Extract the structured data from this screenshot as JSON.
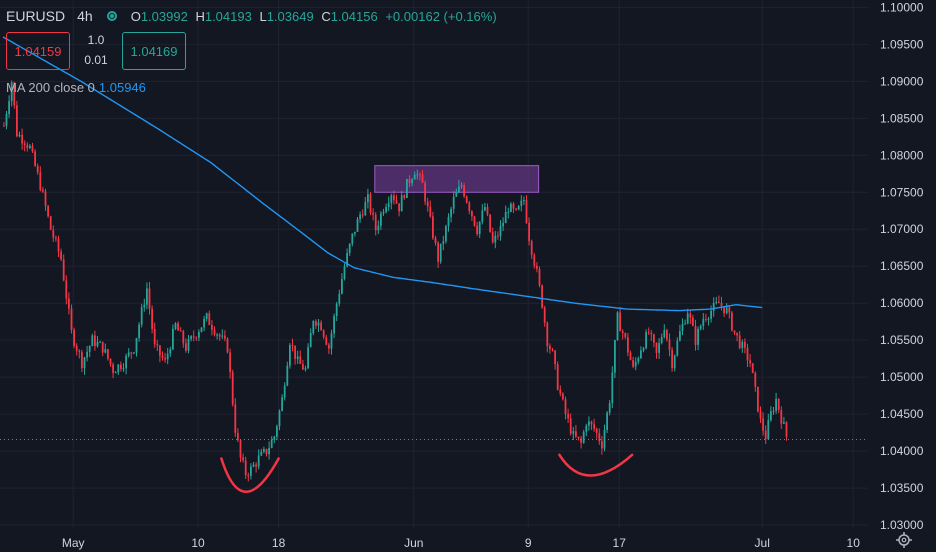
{
  "header": {
    "symbol": "EURUSD",
    "timeframe": "4h",
    "open_label": "O",
    "open": "1.03992",
    "high_label": "H",
    "high": "1.04193",
    "low_label": "L",
    "low": "1.03649",
    "close_label": "C",
    "close": "1.04156",
    "change": "+0.00162 (+0.16%)"
  },
  "trade_panel": {
    "sell_price": "1.04159",
    "buy_price": "1.04169",
    "lot_top": "1.0",
    "lot_bottom": "0.01"
  },
  "indicator": {
    "name": "MA 200 close 0",
    "value": "1.05946",
    "color": "#2196f3"
  },
  "colors": {
    "background": "#131722",
    "up": "#26a69a",
    "down": "#f23645",
    "ma": "#2196f3",
    "zone": "#7b3fa0",
    "annotation": "#f23645"
  },
  "chart_data": {
    "type": "candlestick",
    "symbol": "EURUSD",
    "ylim": [
      1.0296,
      1.101
    ],
    "yticks": [
      "1.10000",
      "1.09500",
      "1.09000",
      "1.08500",
      "1.08000",
      "1.07500",
      "1.07000",
      "1.06500",
      "1.06000",
      "1.05500",
      "1.05000",
      "1.04500",
      "1.04000",
      "1.03500",
      "1.03000"
    ],
    "xticks": [
      {
        "label": "May",
        "bar": 27
      },
      {
        "label": "10",
        "bar": 75
      },
      {
        "label": "18",
        "bar": 106
      },
      {
        "label": "Jun",
        "bar": 158
      },
      {
        "label": "9",
        "bar": 202
      },
      {
        "label": "17",
        "bar": 237
      },
      {
        "label": "Jul",
        "bar": 292
      },
      {
        "label": "10",
        "bar": 327
      }
    ],
    "last_price": "1.04156",
    "ma200_anchors": [
      [
        0,
        1.096
      ],
      [
        30,
        1.09
      ],
      [
        60,
        1.0835
      ],
      [
        80,
        1.079
      ],
      [
        100,
        1.0735
      ],
      [
        115,
        1.0695
      ],
      [
        125,
        1.0668
      ],
      [
        135,
        1.0648
      ],
      [
        150,
        1.0635
      ],
      [
        165,
        1.0628
      ],
      [
        180,
        1.062
      ],
      [
        200,
        1.061
      ],
      [
        220,
        1.06
      ],
      [
        240,
        1.0592
      ],
      [
        260,
        1.059
      ],
      [
        272,
        1.0592
      ],
      [
        282,
        1.0598
      ],
      [
        292,
        1.0594
      ]
    ],
    "price_anchors": [
      [
        0,
        1.084
      ],
      [
        1,
        1.086
      ],
      [
        3,
        1.09
      ],
      [
        5,
        1.083
      ],
      [
        8,
        1.082
      ],
      [
        10,
        1.081
      ],
      [
        14,
        1.076
      ],
      [
        18,
        1.07
      ],
      [
        22,
        1.066
      ],
      [
        26,
        1.056
      ],
      [
        30,
        1.052
      ],
      [
        34,
        1.055
      ],
      [
        38,
        1.054
      ],
      [
        42,
        1.051
      ],
      [
        46,
        1.052
      ],
      [
        50,
        1.054
      ],
      [
        55,
        1.062
      ],
      [
        58,
        1.054
      ],
      [
        62,
        1.052
      ],
      [
        66,
        1.057
      ],
      [
        70,
        1.054
      ],
      [
        74,
        1.056
      ],
      [
        78,
        1.058
      ],
      [
        82,
        1.056
      ],
      [
        86,
        1.054
      ],
      [
        89,
        1.043
      ],
      [
        91,
        1.039
      ],
      [
        93,
        1.037
      ],
      [
        95,
        1.0375
      ],
      [
        98,
        1.039
      ],
      [
        101,
        1.04
      ],
      [
        104,
        1.042
      ],
      [
        107,
        1.047
      ],
      [
        110,
        1.055
      ],
      [
        113,
        1.052
      ],
      [
        116,
        1.051
      ],
      [
        119,
        1.058
      ],
      [
        122,
        1.057
      ],
      [
        125,
        1.054
      ],
      [
        128,
        1.06
      ],
      [
        131,
        1.065
      ],
      [
        134,
        1.069
      ],
      [
        137,
        1.072
      ],
      [
        140,
        1.074
      ],
      [
        143,
        1.07
      ],
      [
        146,
        1.073
      ],
      [
        149,
        1.075
      ],
      [
        152,
        1.073
      ],
      [
        155,
        1.076
      ],
      [
        158,
        1.078
      ],
      [
        161,
        1.076
      ],
      [
        164,
        1.071
      ],
      [
        167,
        1.066
      ],
      [
        170,
        1.07
      ],
      [
        173,
        1.074
      ],
      [
        176,
        1.076
      ],
      [
        179,
        1.073
      ],
      [
        182,
        1.07
      ],
      [
        185,
        1.073
      ],
      [
        188,
        1.068
      ],
      [
        191,
        1.07
      ],
      [
        194,
        1.073
      ],
      [
        197,
        1.072
      ],
      [
        200,
        1.074
      ],
      [
        202,
        1.069
      ],
      [
        205,
        1.064
      ],
      [
        207,
        1.06
      ],
      [
        209,
        1.055
      ],
      [
        211,
        1.053
      ],
      [
        213,
        1.049
      ],
      [
        216,
        1.045
      ],
      [
        219,
        1.042
      ],
      [
        222,
        1.041
      ],
      [
        224,
        1.044
      ],
      [
        227,
        1.043
      ],
      [
        230,
        1.041
      ],
      [
        233,
        1.047
      ],
      [
        236,
        1.058
      ],
      [
        239,
        1.055
      ],
      [
        242,
        1.051
      ],
      [
        245,
        1.054
      ],
      [
        248,
        1.056
      ],
      [
        251,
        1.053
      ],
      [
        254,
        1.057
      ],
      [
        257,
        1.052
      ],
      [
        260,
        1.056
      ],
      [
        263,
        1.059
      ],
      [
        266,
        1.055
      ],
      [
        269,
        1.058
      ],
      [
        272,
        1.059
      ],
      [
        275,
        1.06
      ],
      [
        278,
        1.059
      ],
      [
        281,
        1.056
      ],
      [
        284,
        1.054
      ],
      [
        287,
        1.052
      ],
      [
        289,
        1.048
      ],
      [
        291,
        1.044
      ],
      [
        293,
        1.042
      ],
      [
        295,
        1.045
      ],
      [
        297,
        1.047
      ],
      [
        299,
        1.0445
      ],
      [
        301,
        1.042
      ]
    ],
    "supply_zone": {
      "bar_start": 143,
      "bar_end": 206,
      "price_low": 1.075,
      "price_high": 1.0786
    },
    "annotations": [
      {
        "type": "curve",
        "bar_start": 84,
        "bar_mid": 92,
        "bar_end": 106,
        "price_edge": 1.039,
        "price_mid": 1.0345
      },
      {
        "type": "curve",
        "bar_start": 214,
        "bar_mid": 224,
        "bar_end": 242,
        "price_edge": 1.0395,
        "price_mid": 1.0367
      }
    ]
  }
}
